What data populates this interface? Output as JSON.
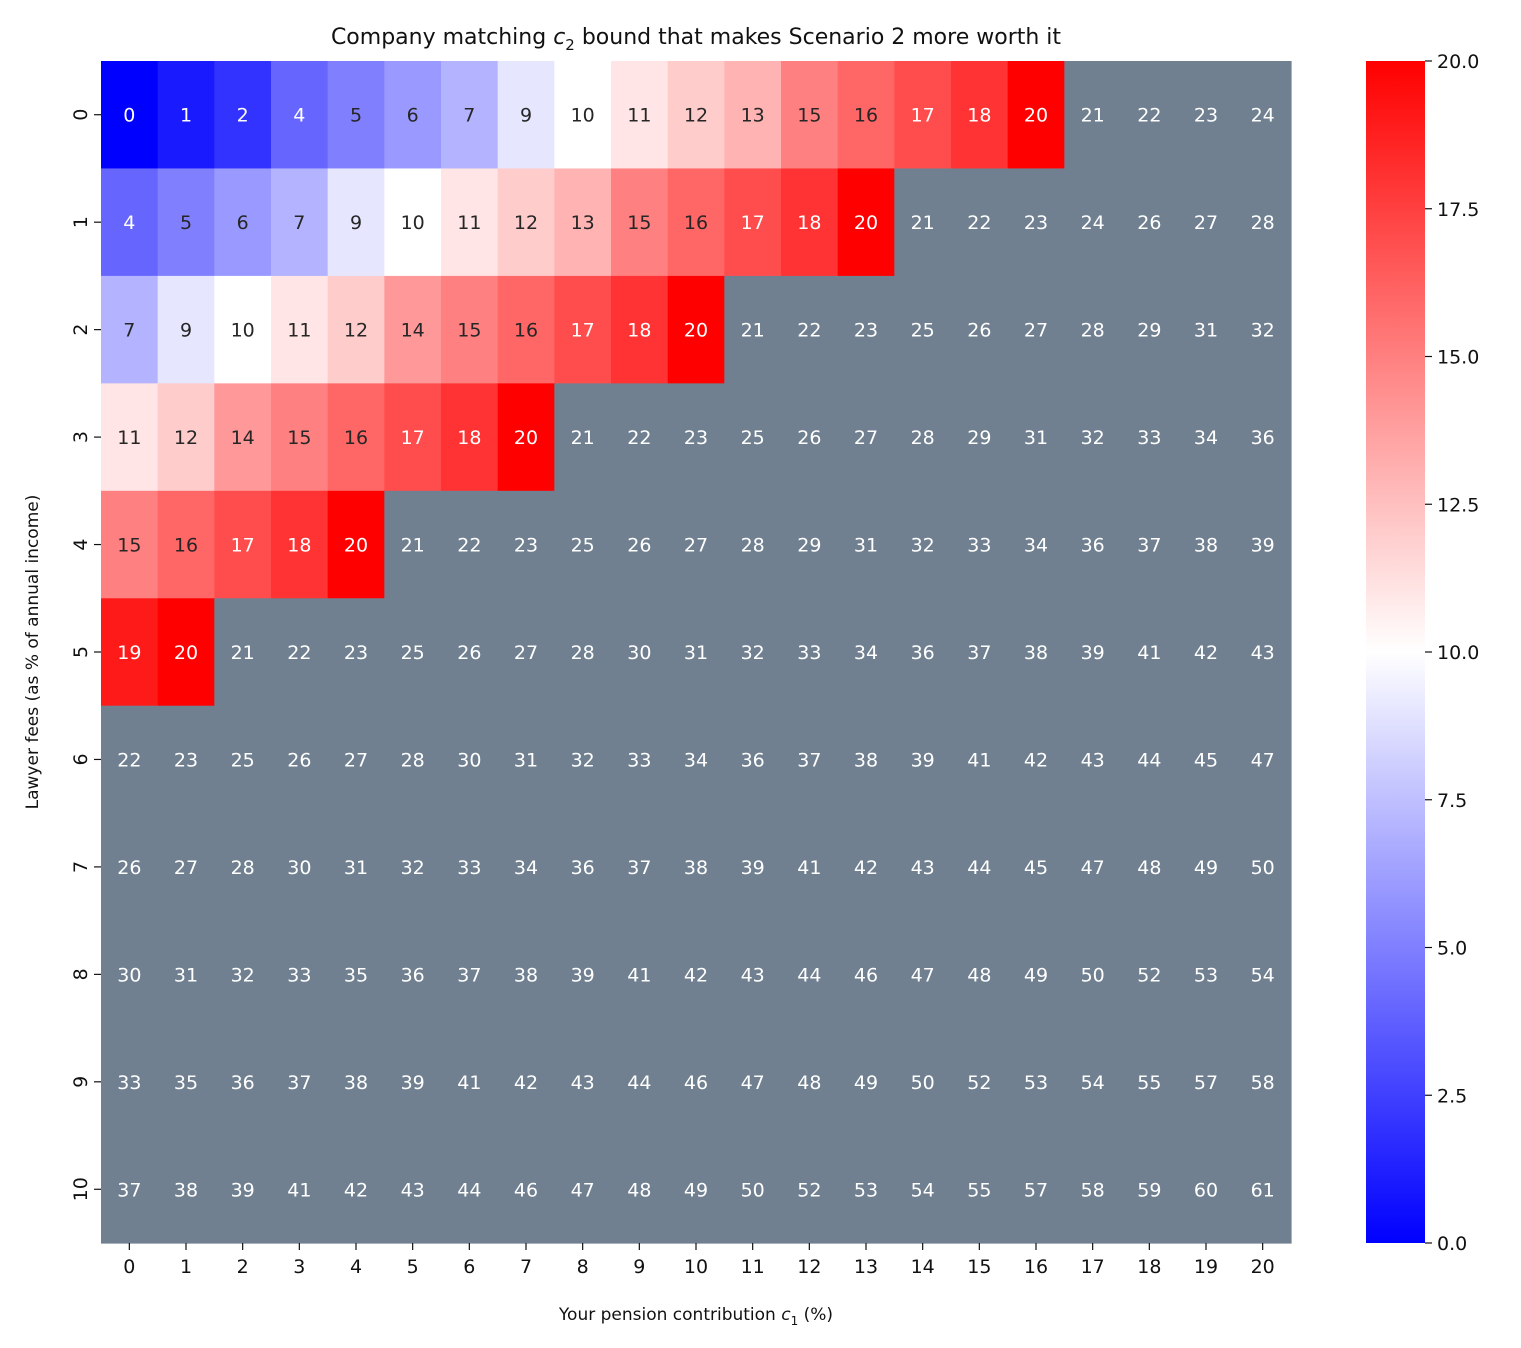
{
  "chart_data": {
    "type": "heatmap",
    "title_prefix": "Company matching ",
    "title_var": "c",
    "title_sub": "2",
    "title_suffix": " bound that makes Scenario 2 more worth it",
    "xlabel_prefix": "Your pension contribution ",
    "xlabel_var": "c",
    "xlabel_sub": "1",
    "xlabel_suffix": " (%)",
    "ylabel": "Lawyer fees (as % of annual income)",
    "x_categories": [
      "0",
      "1",
      "2",
      "3",
      "4",
      "5",
      "6",
      "7",
      "8",
      "9",
      "10",
      "11",
      "12",
      "13",
      "14",
      "15",
      "16",
      "17",
      "18",
      "19",
      "20"
    ],
    "y_categories": [
      "0",
      "1",
      "2",
      "3",
      "4",
      "5",
      "6",
      "7",
      "8",
      "9",
      "10"
    ],
    "values": [
      [
        0,
        1,
        2,
        4,
        5,
        6,
        7,
        9,
        10,
        11,
        12,
        13,
        15,
        16,
        17,
        18,
        20,
        21,
        22,
        23,
        24
      ],
      [
        4,
        5,
        6,
        7,
        9,
        10,
        11,
        12,
        13,
        15,
        16,
        17,
        18,
        20,
        21,
        22,
        23,
        24,
        26,
        27,
        28
      ],
      [
        7,
        9,
        10,
        11,
        12,
        14,
        15,
        16,
        17,
        18,
        20,
        21,
        22,
        23,
        25,
        26,
        27,
        28,
        29,
        31,
        32
      ],
      [
        11,
        12,
        14,
        15,
        16,
        17,
        18,
        20,
        21,
        22,
        23,
        25,
        26,
        27,
        28,
        29,
        31,
        32,
        33,
        34,
        36
      ],
      [
        15,
        16,
        17,
        18,
        20,
        21,
        22,
        23,
        25,
        26,
        27,
        28,
        29,
        31,
        32,
        33,
        34,
        36,
        37,
        38,
        39
      ],
      [
        19,
        20,
        21,
        22,
        23,
        25,
        26,
        27,
        28,
        30,
        31,
        32,
        33,
        34,
        36,
        37,
        38,
        39,
        41,
        42,
        43
      ],
      [
        22,
        23,
        25,
        26,
        27,
        28,
        30,
        31,
        32,
        33,
        34,
        36,
        37,
        38,
        39,
        41,
        42,
        43,
        44,
        45,
        47
      ],
      [
        26,
        27,
        28,
        30,
        31,
        32,
        33,
        34,
        36,
        37,
        38,
        39,
        41,
        42,
        43,
        44,
        45,
        47,
        48,
        49,
        50
      ],
      [
        30,
        31,
        32,
        33,
        35,
        36,
        37,
        38,
        39,
        41,
        42,
        43,
        44,
        46,
        47,
        48,
        49,
        50,
        52,
        53,
        54
      ],
      [
        33,
        35,
        36,
        37,
        38,
        39,
        41,
        42,
        43,
        44,
        46,
        47,
        48,
        49,
        50,
        52,
        53,
        54,
        55,
        57,
        58
      ],
      [
        37,
        38,
        39,
        41,
        42,
        43,
        44,
        46,
        47,
        48,
        49,
        50,
        52,
        53,
        54,
        55,
        57,
        58,
        59,
        60,
        61
      ]
    ],
    "colorscale": {
      "vmin": 0,
      "vmax": 20,
      "low": "#0000ff",
      "mid": "#ffffff",
      "high": "#ff0000"
    },
    "over_color": "#708090",
    "colorbar_ticks": [
      "0.0",
      "2.5",
      "5.0",
      "7.5",
      "10.0",
      "12.5",
      "15.0",
      "17.5",
      "20.0"
    ]
  }
}
